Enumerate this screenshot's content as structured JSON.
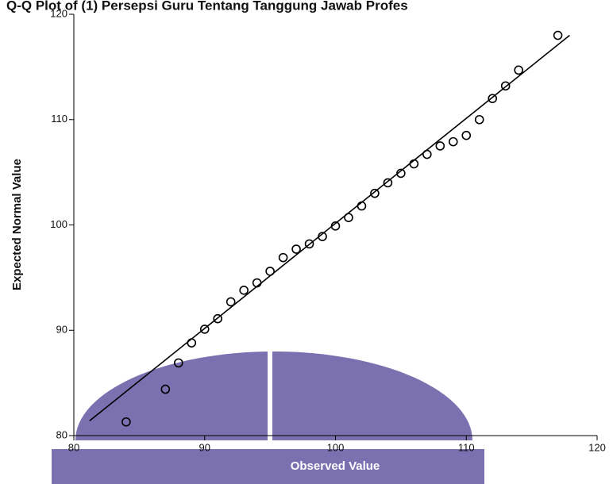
{
  "chart_data": {
    "type": "scatter",
    "title": "Q-Q Plot of (1) Persepsi Guru Tentang Tanggung Jawab Profes",
    "x_label": "Observed Value",
    "y_label": "Expected Normal Value",
    "series": [
      {
        "name": null,
        "color": "#000000",
        "x": [
          84,
          87,
          88,
          89,
          90,
          91,
          92,
          93,
          94,
          95,
          96,
          97,
          98,
          99,
          100,
          101,
          102,
          103,
          104,
          105,
          106,
          107,
          108,
          109,
          110,
          111,
          112,
          113,
          114,
          117
        ],
        "values": [
          81.3,
          84.4,
          86.9,
          88.8,
          90.1,
          91.1,
          92.7,
          93.8,
          94.5,
          95.6,
          96.9,
          97.7,
          98.2,
          98.9,
          99.9,
          100.7,
          101.8,
          103.0,
          104.0,
          104.9,
          105.8,
          106.7,
          107.5,
          107.9,
          108.5,
          110.0,
          112.0,
          113.2,
          114.7,
          118.0
        ]
      }
    ],
    "reference_line": {
      "x": [
        81.2,
        117.9
      ],
      "y": [
        81.4,
        118.0
      ],
      "color": "#000000"
    },
    "xlim": [
      80,
      120
    ],
    "ylim": [
      80,
      120
    ],
    "xticks": [
      80,
      90,
      100,
      110,
      120
    ],
    "yticks": [
      80,
      90,
      100,
      110,
      120
    ]
  }
}
